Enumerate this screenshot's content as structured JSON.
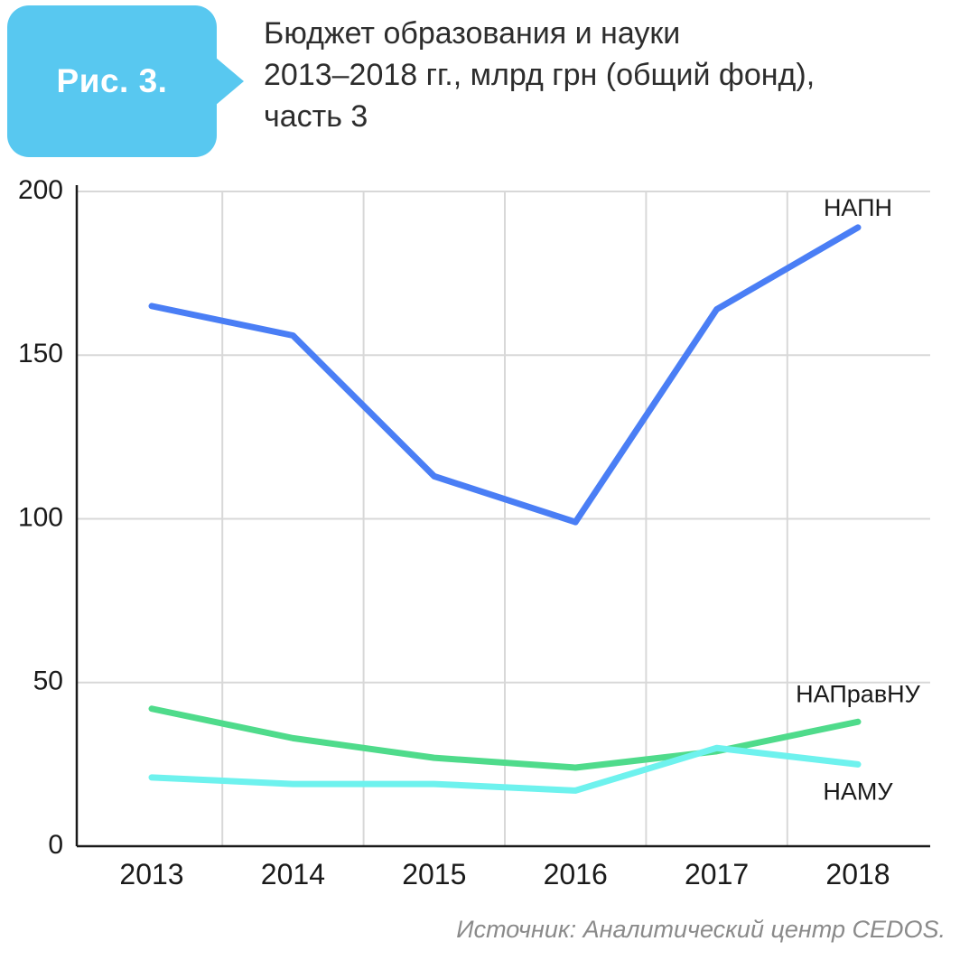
{
  "figure_label": "Рис. 3.",
  "title_lines": [
    "Бюджет образования и науки",
    "2013–2018 гг., млрд грн (общий фонд),",
    "часть 3"
  ],
  "source": "Источник: Аналитический центр CEDOS.",
  "colors": {
    "badge": "#58c8f0",
    "grid": "#d8d8d8",
    "axis": "#1a1a1a",
    "tick_label": "#1a1a1a",
    "series_label": "#1a1a1a"
  },
  "chart_data": {
    "type": "line",
    "x": [
      "2013",
      "2014",
      "2015",
      "2016",
      "2017",
      "2018"
    ],
    "series": [
      {
        "name": "НАПН",
        "values": [
          165,
          156,
          113,
          99,
          164,
          189
        ],
        "color": "#4a7ef5",
        "label_offset": [
          0,
          -20
        ]
      },
      {
        "name": "НАПравНУ",
        "values": [
          42,
          33,
          27,
          24,
          29,
          38
        ],
        "color": "#4fdb8b",
        "label_offset": [
          0,
          -29
        ]
      },
      {
        "name": "НАМУ",
        "values": [
          21,
          19,
          19,
          17,
          30,
          25
        ],
        "color": "#6ef2ee",
        "label_offset": [
          0,
          32
        ]
      }
    ],
    "ylim": [
      0,
      200
    ],
    "yticks": [
      0,
      50,
      100,
      150,
      200
    ],
    "grid": true,
    "grid_vertical": "between-categories",
    "legend_position": "inline-labels",
    "title": "Бюджет образования и науки 2013–2018 гг., млрд грн (общий фонд), часть 3",
    "xlabel": "",
    "ylabel": ""
  }
}
